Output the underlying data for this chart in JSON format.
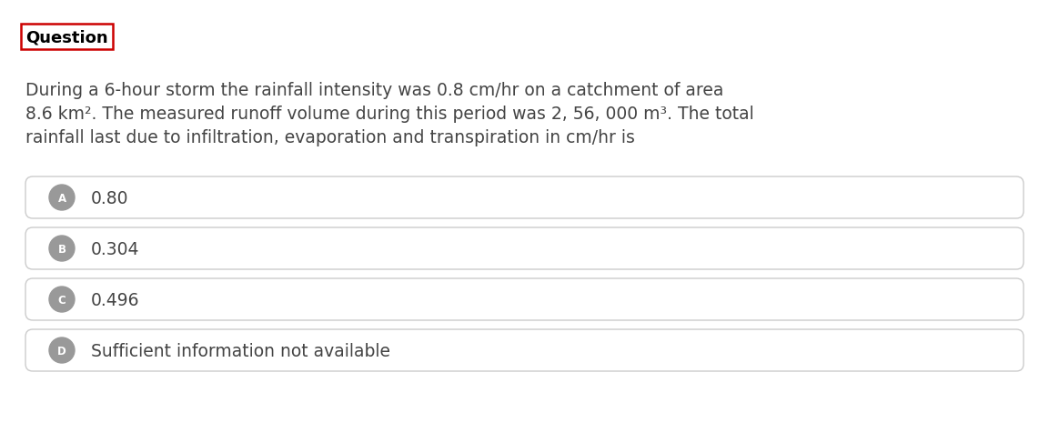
{
  "title": "Question",
  "title_box_color": "#cc0000",
  "title_bg": "#ffffff",
  "title_text_color": "#000000",
  "question_line1": "During a 6-hour storm the rainfall intensity was 0.8 cm/hr on a catchment of area",
  "question_line2": "8.6 km². The measured runoff volume during this period was 2, 56, 000 m³. The total",
  "question_line3": "rainfall last due to infiltration, evaporation and transpiration in cm/hr is",
  "options": [
    {
      "label": "A",
      "text": "0.80"
    },
    {
      "label": "B",
      "text": "0.304"
    },
    {
      "label": "C",
      "text": "0.496"
    },
    {
      "label": "D",
      "text": "Sufficient information not available"
    }
  ],
  "bg_color": "#ffffff",
  "option_box_facecolor": "#ffffff",
  "option_box_edgecolor": "#cccccc",
  "option_label_bg": "#999999",
  "option_label_color": "#ffffff",
  "question_text_color": "#444444",
  "option_text_color": "#444444",
  "option_label_font_size": 8.5,
  "question_font_size": 13.5,
  "option_font_size": 13.5,
  "title_font_size": 13.0,
  "fig_width": 11.53,
  "fig_height": 4.77,
  "dpi": 100
}
